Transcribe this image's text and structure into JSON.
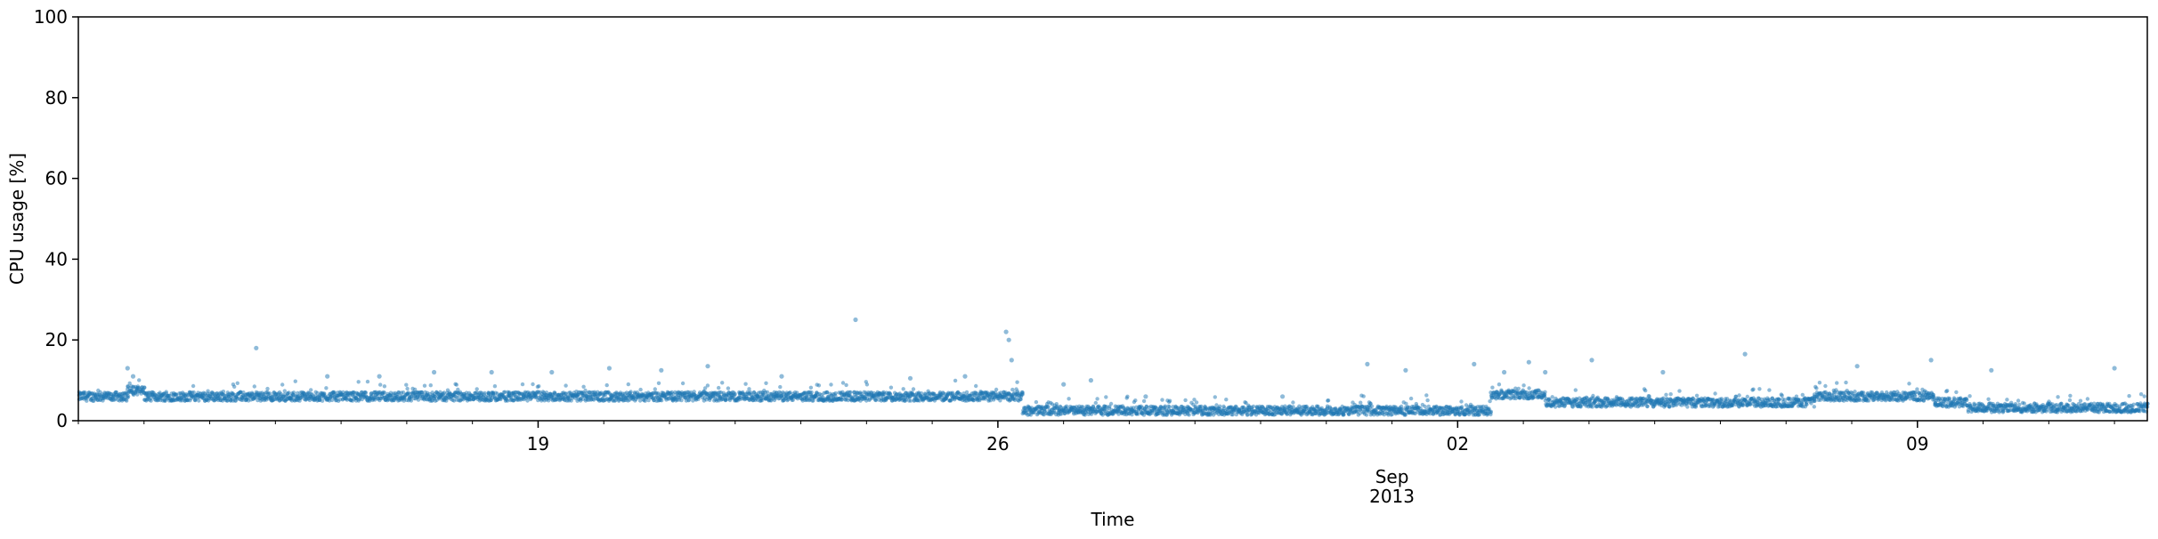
{
  "chart_data": {
    "type": "scatter",
    "xlabel": "Time",
    "ylabel": "CPU usage [%]",
    "ylim": [
      0,
      100
    ],
    "xlim": [
      "2013-08-12T00:00",
      "2013-09-12T12:00"
    ],
    "yticks": [
      0,
      20,
      40,
      60,
      80,
      100
    ],
    "xticks": [
      {
        "date": "2013-08-19",
        "label": "19"
      },
      {
        "date": "2013-08-26",
        "label": "26"
      },
      {
        "date": "2013-09-02",
        "label": "02"
      },
      {
        "date": "2013-09-09",
        "label": "09"
      }
    ],
    "x_major_label": {
      "date": "2013-09-01",
      "month": "Sep",
      "year": "2013"
    },
    "grid": false,
    "marker_color": "#1f77b4",
    "baseline_segments": [
      {
        "start": "2013-08-12T00:00",
        "end": "2013-08-12T18:00",
        "level": 6.0
      },
      {
        "start": "2013-08-12T18:00",
        "end": "2013-08-13T00:00",
        "level": 7.5
      },
      {
        "start": "2013-08-13T00:00",
        "end": "2013-08-26T09:00",
        "level": 6.0
      },
      {
        "start": "2013-08-26T09:00",
        "end": "2013-09-02T12:00",
        "level": 2.5
      },
      {
        "start": "2013-09-02T12:00",
        "end": "2013-09-03T08:00",
        "level": 6.5
      },
      {
        "start": "2013-09-03T08:00",
        "end": "2013-09-07T10:00",
        "level": 4.5
      },
      {
        "start": "2013-09-07T10:00",
        "end": "2013-09-09T06:00",
        "level": 6.0
      },
      {
        "start": "2013-09-09T06:00",
        "end": "2013-09-09T18:00",
        "level": 4.5
      },
      {
        "start": "2013-09-09T18:00",
        "end": "2013-09-12T12:00",
        "level": 3.2
      }
    ],
    "outliers": [
      {
        "x": "2013-08-12T18:00",
        "y": 13.0
      },
      {
        "x": "2013-08-12T20:00",
        "y": 11.0
      },
      {
        "x": "2013-08-14T17:00",
        "y": 18.0
      },
      {
        "x": "2013-08-15T19:00",
        "y": 11.0
      },
      {
        "x": "2013-08-16T14:00",
        "y": 11.0
      },
      {
        "x": "2013-08-17T10:00",
        "y": 12.0
      },
      {
        "x": "2013-08-18T07:00",
        "y": 12.0
      },
      {
        "x": "2013-08-19T05:00",
        "y": 12.0
      },
      {
        "x": "2013-08-20T02:00",
        "y": 13.0
      },
      {
        "x": "2013-08-20T21:00",
        "y": 12.5
      },
      {
        "x": "2013-08-21T14:00",
        "y": 13.5
      },
      {
        "x": "2013-08-22T17:00",
        "y": 11.0
      },
      {
        "x": "2013-08-23T20:00",
        "y": 25.0
      },
      {
        "x": "2013-08-24T16:00",
        "y": 10.5
      },
      {
        "x": "2013-08-25T12:00",
        "y": 11.0
      },
      {
        "x": "2013-08-26T03:00",
        "y": 22.0
      },
      {
        "x": "2013-08-26T04:00",
        "y": 20.0
      },
      {
        "x": "2013-08-26T05:00",
        "y": 15.0
      },
      {
        "x": "2013-08-27T00:00",
        "y": 9.0
      },
      {
        "x": "2013-08-27T10:00",
        "y": 10.0
      },
      {
        "x": "2013-08-28T06:00",
        "y": 6.0
      },
      {
        "x": "2013-08-30T08:00",
        "y": 6.0
      },
      {
        "x": "2013-08-31T15:00",
        "y": 14.0
      },
      {
        "x": "2013-09-01T05:00",
        "y": 12.5
      },
      {
        "x": "2013-09-02T06:00",
        "y": 14.0
      },
      {
        "x": "2013-09-02T17:00",
        "y": 12.0
      },
      {
        "x": "2013-09-03T02:00",
        "y": 14.5
      },
      {
        "x": "2013-09-03T08:00",
        "y": 12.0
      },
      {
        "x": "2013-09-04T01:00",
        "y": 15.0
      },
      {
        "x": "2013-09-05T03:00",
        "y": 12.0
      },
      {
        "x": "2013-09-06T09:00",
        "y": 16.5
      },
      {
        "x": "2013-09-08T02:00",
        "y": 13.5
      },
      {
        "x": "2013-09-09T05:00",
        "y": 15.0
      },
      {
        "x": "2013-09-10T03:00",
        "y": 12.5
      },
      {
        "x": "2013-09-12T00:00",
        "y": 13.0
      }
    ]
  }
}
